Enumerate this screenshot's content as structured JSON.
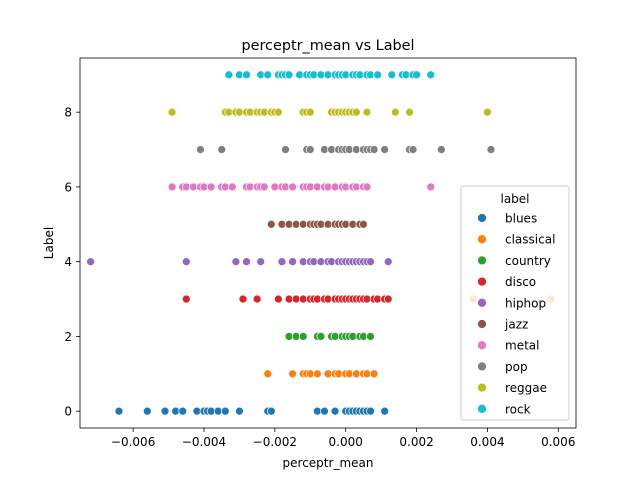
{
  "chart_data": {
    "type": "scatter",
    "title": "perceptr_mean vs Label",
    "xlabel": "perceptr_mean",
    "ylabel": "Label",
    "xlim": [
      -0.0075,
      0.0065
    ],
    "ylim": [
      -0.45,
      9.45
    ],
    "xticks": [
      -0.006,
      -0.004,
      -0.002,
      0.0,
      0.002,
      0.004,
      0.006
    ],
    "xtick_labels": [
      "−0.006",
      "−0.004",
      "−0.002",
      "0.000",
      "0.002",
      "0.004",
      "0.006"
    ],
    "yticks": [
      0,
      2,
      4,
      6,
      8
    ],
    "ytick_labels": [
      "0",
      "2",
      "4",
      "6",
      "8"
    ],
    "grid": false,
    "legend": {
      "title": "label",
      "placement": "center-right"
    },
    "series": [
      {
        "name": "blues",
        "color": "#1f77b4",
        "y": 0,
        "x": [
          -0.0064,
          -0.0056,
          -0.0051,
          -0.0048,
          -0.0046,
          -0.0042,
          -0.004,
          -0.0039,
          -0.0038,
          -0.0036,
          -0.0034,
          -0.003,
          -0.0022,
          -0.0021,
          -0.0008,
          -0.0006,
          -0.0003,
          0.0,
          0.0001,
          0.0002,
          0.0003,
          0.0004,
          0.0005,
          0.0006,
          0.0007,
          0.0011
        ]
      },
      {
        "name": "classical",
        "color": "#ff7f0e",
        "y": 1,
        "x": [
          -0.0022,
          -0.0015,
          -0.0012,
          -0.0011,
          -0.001,
          -0.0008,
          -0.0005,
          -0.0003,
          -0.0002,
          0.0,
          0.0001,
          0.0003,
          0.0005,
          0.0006,
          0.0008
        ]
      },
      {
        "name": "classical",
        "color": "#ff7f0e",
        "y": 3,
        "x": [
          0.0036,
          0.0058
        ]
      },
      {
        "name": "country",
        "color": "#2ca02c",
        "y": 2,
        "x": [
          -0.0016,
          -0.0014,
          -0.0012,
          -0.0008,
          -0.0007,
          -0.0004,
          -0.0003,
          -0.0001,
          0.0,
          0.0001,
          0.0002,
          0.0004,
          0.0005,
          0.0007
        ]
      },
      {
        "name": "disco",
        "color": "#d62728",
        "y": 3,
        "x": [
          -0.0045,
          -0.0029,
          -0.0025,
          -0.0019,
          -0.0016,
          -0.0014,
          -0.0012,
          -0.001,
          -0.0009,
          -0.0008,
          -0.0006,
          -0.0005,
          -0.0003,
          -0.0002,
          -0.0001,
          0.0,
          0.0001,
          0.0002,
          0.0003,
          0.0004,
          0.0005,
          0.0006,
          0.0008,
          0.0009,
          0.0011,
          0.0012
        ]
      },
      {
        "name": "hiphop",
        "color": "#9467bd",
        "y": 4,
        "x": [
          -0.0072,
          -0.0045,
          -0.0031,
          -0.0028,
          -0.0024,
          -0.0018,
          -0.0015,
          -0.0012,
          -0.001,
          -0.0009,
          -0.0007,
          -0.0005,
          -0.0004,
          -0.0002,
          -0.0001,
          0.0,
          0.0001,
          0.0002,
          0.0003,
          0.0004,
          0.0005,
          0.0006,
          0.0007,
          0.0012
        ]
      },
      {
        "name": "jazz",
        "color": "#8c564b",
        "y": 5,
        "x": [
          -0.0021,
          -0.0018,
          -0.0016,
          -0.0014,
          -0.0012,
          -0.001,
          -0.0009,
          -0.0008,
          -0.0007,
          -0.0005,
          -0.0003,
          -0.0002,
          -0.0001,
          0.0,
          0.0002,
          0.0004,
          0.0005
        ]
      },
      {
        "name": "metal",
        "color": "#e377c2",
        "y": 6,
        "x": [
          -0.0049,
          -0.0046,
          -0.0045,
          -0.0043,
          -0.0041,
          -0.004,
          -0.0038,
          -0.0035,
          -0.0034,
          -0.0032,
          -0.0028,
          -0.0027,
          -0.0025,
          -0.0024,
          -0.0023,
          -0.002,
          -0.0018,
          -0.0017,
          -0.0015,
          -0.0012,
          -0.0011,
          -0.001,
          -0.0008,
          -0.0006,
          -0.0005,
          -0.0003,
          -0.0001,
          0.0,
          0.0002,
          0.0003,
          0.0005,
          0.0006,
          0.0024
        ]
      },
      {
        "name": "pop",
        "color": "#7f7f7f",
        "y": 7,
        "x": [
          -0.0041,
          -0.0035,
          -0.0017,
          -0.0011,
          -0.001,
          -0.0006,
          -0.0004,
          -0.0002,
          -0.0001,
          0.0,
          0.0001,
          0.0003,
          0.0005,
          0.0006,
          0.0007,
          0.0008,
          0.0011,
          0.0018,
          0.0019,
          0.0027,
          0.0041
        ]
      },
      {
        "name": "reggae",
        "color": "#bcbd22",
        "y": 8,
        "x": [
          -0.0049,
          -0.0034,
          -0.0033,
          -0.0031,
          -0.003,
          -0.0028,
          -0.0027,
          -0.0025,
          -0.0024,
          -0.0023,
          -0.0021,
          -0.002,
          -0.0019,
          -0.0012,
          -0.0011,
          -0.001,
          -0.0004,
          -0.0003,
          -0.0002,
          -0.0001,
          0.0,
          0.0001,
          0.0002,
          0.0003,
          0.0006,
          0.0014,
          0.0018,
          0.004
        ]
      },
      {
        "name": "rock",
        "color": "#17becf",
        "y": 9,
        "x": [
          -0.0033,
          -0.003,
          -0.0028,
          -0.0024,
          -0.0022,
          -0.0019,
          -0.0018,
          -0.0017,
          -0.0016,
          -0.0013,
          -0.0011,
          -0.001,
          -0.0009,
          -0.0007,
          -0.0005,
          -0.0003,
          -0.0002,
          -0.0001,
          0.0,
          0.0002,
          0.0003,
          0.0004,
          0.0006,
          0.0007,
          0.0009,
          0.0013,
          0.0016,
          0.0017,
          0.0019,
          0.002,
          0.0024
        ]
      }
    ],
    "legend_entries": [
      {
        "label": "blues",
        "color": "#1f77b4"
      },
      {
        "label": "classical",
        "color": "#ff7f0e"
      },
      {
        "label": "country",
        "color": "#2ca02c"
      },
      {
        "label": "disco",
        "color": "#d62728"
      },
      {
        "label": "hiphop",
        "color": "#9467bd"
      },
      {
        "label": "jazz",
        "color": "#8c564b"
      },
      {
        "label": "metal",
        "color": "#e377c2"
      },
      {
        "label": "pop",
        "color": "#7f7f7f"
      },
      {
        "label": "reggae",
        "color": "#bcbd22"
      },
      {
        "label": "rock",
        "color": "#17becf"
      }
    ]
  }
}
